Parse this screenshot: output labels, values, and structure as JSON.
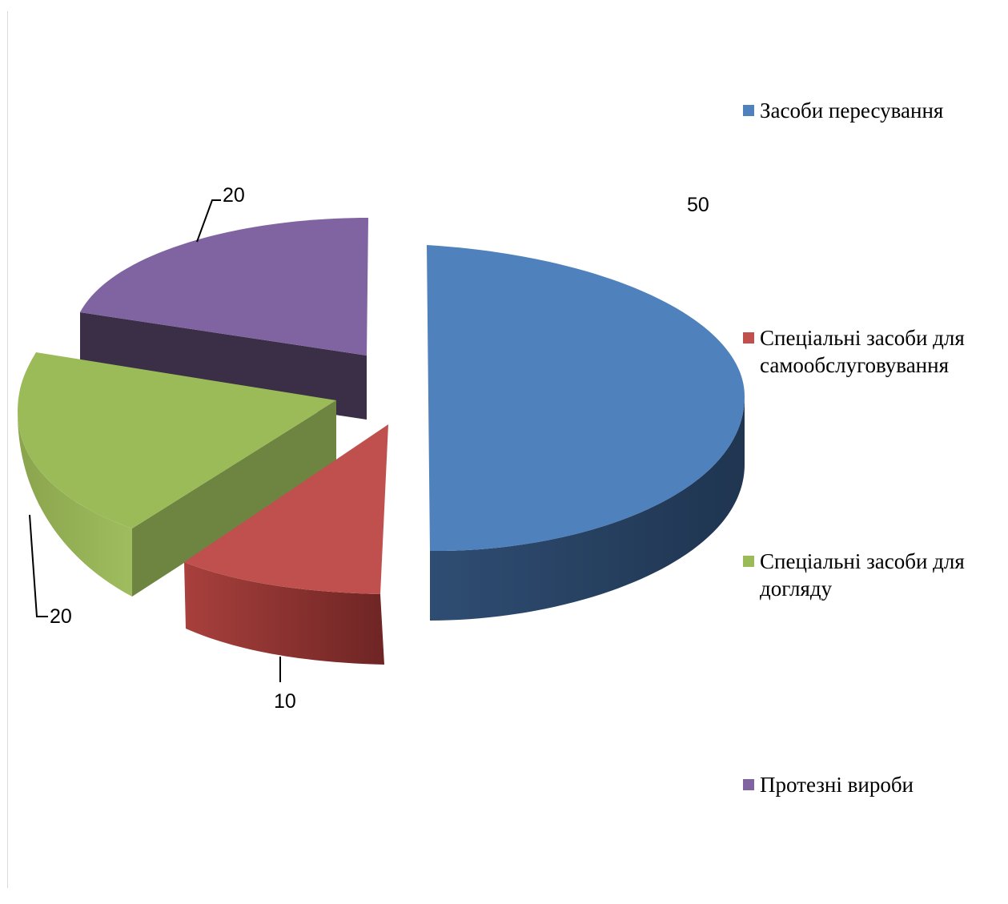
{
  "chart_data": {
    "type": "pie",
    "style": "3d-exploded",
    "legend": "right",
    "categories": [
      "Засоби пересування",
      "Спеціальні засоби для самообслуговування",
      "Спеціальні засоби для догляду",
      "Протезні вироби"
    ],
    "values": [
      50,
      10,
      20,
      20
    ],
    "labels": [
      "50",
      "10",
      "20",
      "20"
    ],
    "colors": [
      "#4f81bd",
      "#c0504d",
      "#9bbb59",
      "#8064a2"
    ]
  }
}
